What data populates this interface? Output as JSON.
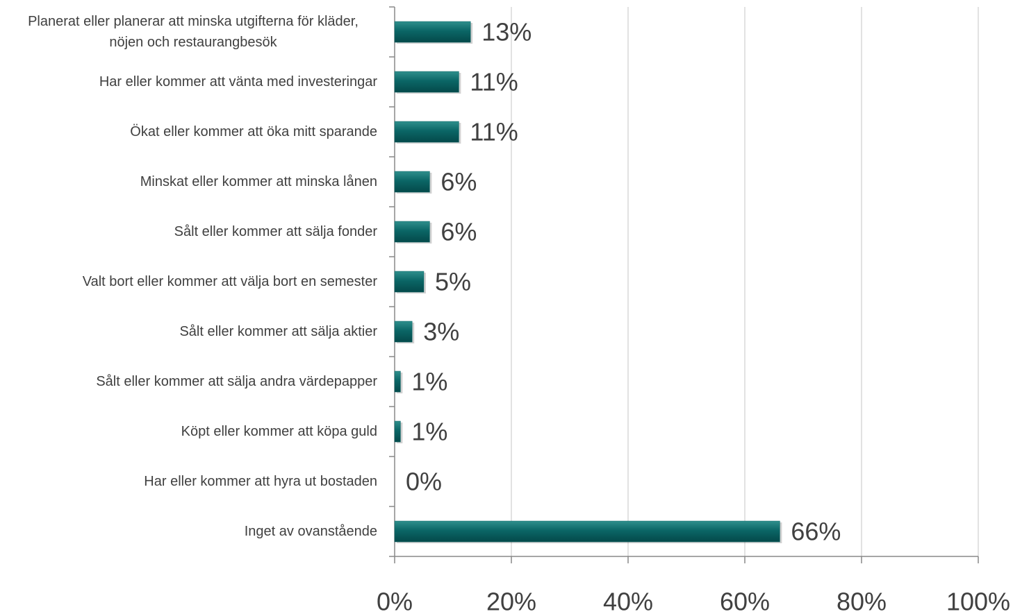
{
  "chart_data": {
    "type": "bar",
    "orientation": "horizontal",
    "categories": [
      "Planerat eller planerar att minska utgifterna för kläder, nöjen och restaurangbesök",
      "Har eller kommer att vänta med investeringar",
      "Ökat eller kommer att öka mitt sparande",
      "Minskat eller kommer att minska lånen",
      "Sålt eller kommer att sälja fonder",
      "Valt bort eller kommer att välja bort en semester",
      "Sålt eller kommer att sälja aktier",
      "Sålt eller kommer att sälja andra värdepapper",
      "Köpt eller kommer att köpa guld",
      "Har eller kommer att hyra ut bostaden",
      "Inget av ovanstående"
    ],
    "values": [
      13,
      11,
      11,
      6,
      6,
      5,
      3,
      1,
      1,
      0,
      66
    ],
    "value_labels": [
      "13%",
      "11%",
      "11%",
      "6%",
      "6%",
      "5%",
      "3%",
      "1%",
      "1%",
      "0%",
      "66%"
    ],
    "color": "#0b6666",
    "xlim": [
      0,
      100
    ],
    "xticks": [
      {
        "value": 0,
        "label": "0%"
      },
      {
        "value": 20,
        "label": "20%"
      },
      {
        "value": 40,
        "label": "40%"
      },
      {
        "value": 60,
        "label": "60%"
      },
      {
        "value": 80,
        "label": "80%"
      },
      {
        "value": 100,
        "label": "100%"
      }
    ],
    "grid": true
  }
}
